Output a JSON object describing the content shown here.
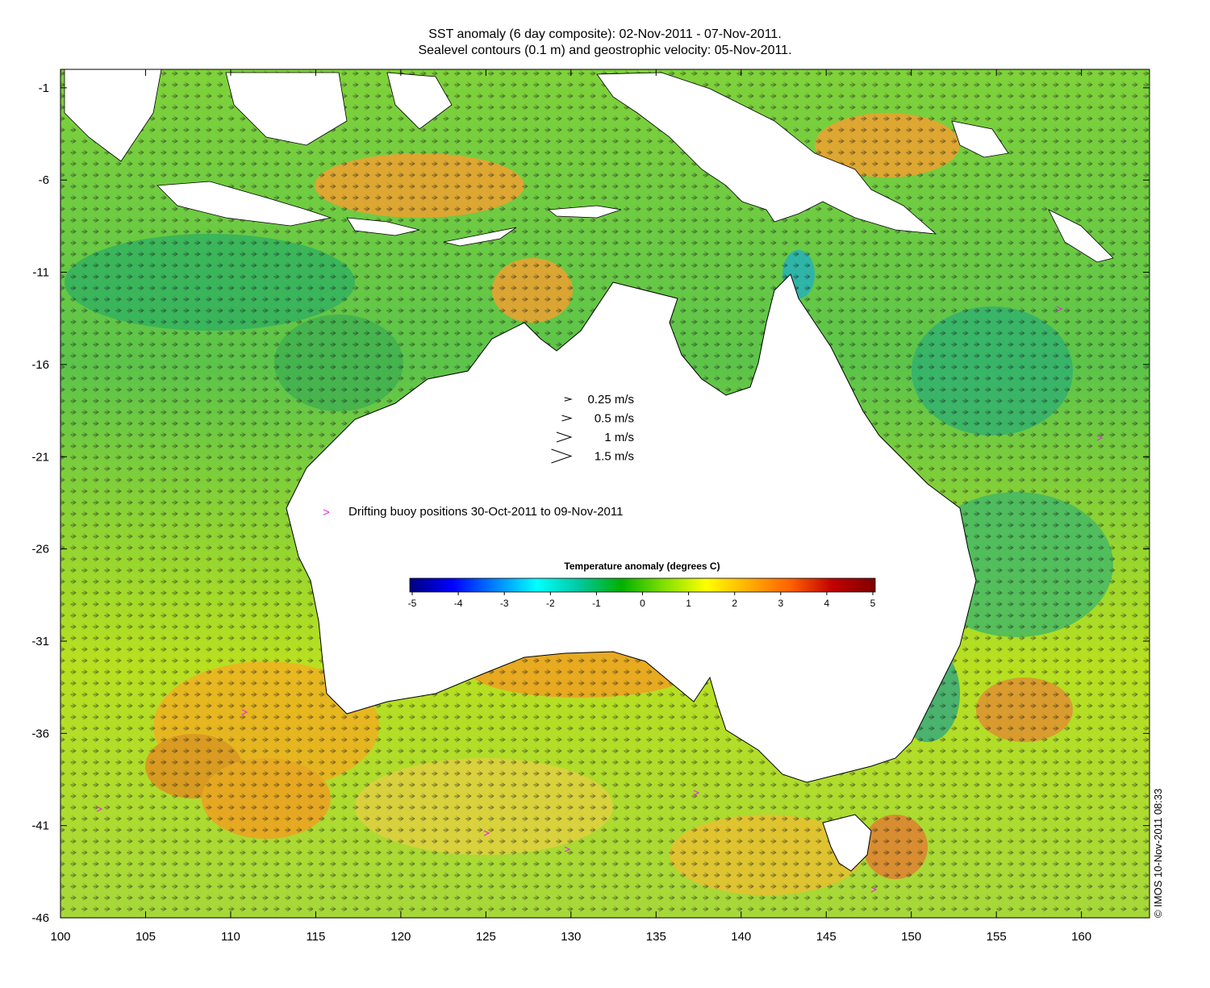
{
  "title": {
    "line1": "SST anomaly (6 day composite): 02-Nov-2011 - 07-Nov-2011.",
    "line2": "Sealevel contours (0.1 m) and geostrophic velocity: 05-Nov-2011."
  },
  "axes": {
    "x_ticks": [
      100,
      105,
      110,
      115,
      120,
      125,
      130,
      135,
      140,
      145,
      150,
      155,
      160
    ],
    "y_ticks": [
      -1,
      -6,
      -11,
      -16,
      -21,
      -26,
      -31,
      -36,
      -41,
      -46
    ],
    "xlim": [
      100,
      164
    ],
    "ylim": [
      -46,
      0
    ]
  },
  "velocity_legend": [
    {
      "label": "0.25 m/s",
      "speed": 0.25
    },
    {
      "label": "0.5 m/s",
      "speed": 0.5
    },
    {
      "label": "1 m/s",
      "speed": 1
    },
    {
      "label": "1.5 m/s",
      "speed": 1.5
    }
  ],
  "buoy_legend": {
    "marker": ">",
    "label": "Drifting buoy positions 30-Oct-2011 to 09-Nov-2011",
    "color": "#e030e0"
  },
  "colorbar": {
    "title": "Temperature anomaly (degrees C)",
    "ticks": [
      "-5",
      "-4",
      "-3",
      "-2",
      "-1",
      "0",
      "1",
      "2",
      "3",
      "4",
      "5"
    ],
    "range": [
      -5,
      5
    ],
    "colors": [
      "#00007f",
      "#0000ff",
      "#0080ff",
      "#00ffff",
      "#00c8a0",
      "#00b000",
      "#80e000",
      "#ffff00",
      "#ffb000",
      "#ff6000",
      "#c00000",
      "#7f0000"
    ]
  },
  "credit": "© IMOS 10-Nov-2011 08:33"
}
